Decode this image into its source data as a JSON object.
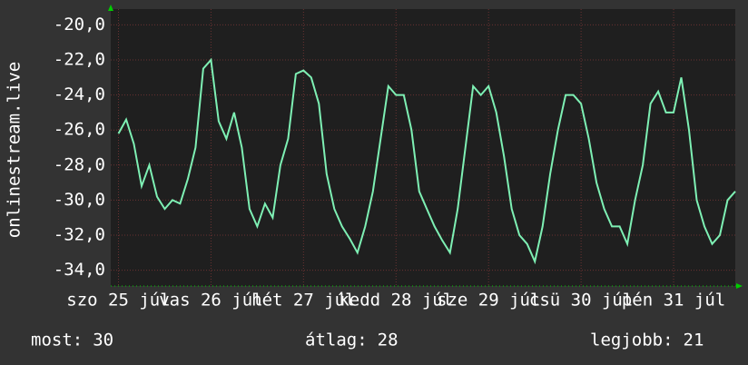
{
  "chart_data": {
    "type": "line",
    "y_label": "onlinestream.live",
    "x": [
      0,
      2,
      4,
      6,
      8,
      10,
      12,
      14,
      16,
      18,
      20,
      22,
      24,
      26,
      28,
      30,
      32,
      34,
      36,
      38,
      40,
      42,
      44,
      46,
      48,
      50,
      52,
      54,
      56,
      58,
      60,
      62,
      64,
      66,
      68,
      70,
      72,
      74,
      76,
      78,
      80,
      82,
      84,
      86,
      88,
      90,
      92,
      94,
      96,
      98,
      100,
      102,
      104,
      106,
      108,
      110,
      112,
      114,
      116,
      118,
      120,
      122,
      124,
      126,
      128,
      130,
      132,
      134,
      136,
      138,
      140,
      142,
      144,
      146,
      148,
      150,
      152,
      154,
      156,
      158,
      160
    ],
    "series": [
      {
        "color": "#7ef0b4",
        "values": [
          -26.2,
          -25.4,
          -26.8,
          -29.2,
          -28.0,
          -29.8,
          -30.5,
          -30.0,
          -30.2,
          -28.8,
          -27.0,
          -22.5,
          -22.0,
          -25.5,
          -26.5,
          -25.0,
          -27.0,
          -30.5,
          -31.5,
          -30.2,
          -31.0,
          -28.0,
          -26.5,
          -22.8,
          -22.6,
          -23.0,
          -24.5,
          -28.5,
          -30.5,
          -31.5,
          -32.2,
          -33.0,
          -31.5,
          -29.5,
          -26.5,
          -23.5,
          -24.0,
          -24.0,
          -26.0,
          -29.5,
          -30.5,
          -31.5,
          -32.3,
          -33.0,
          -30.5,
          -27.0,
          -23.5,
          -24.0,
          -23.5,
          -25.0,
          -27.5,
          -30.5,
          -32.0,
          -32.5,
          -33.5,
          -31.5,
          -28.5,
          -26.0,
          -24.0,
          -24.0,
          -24.5,
          -26.5,
          -29.0,
          -30.5,
          -31.5,
          -31.5,
          -32.5,
          -30.0,
          -28.0,
          -24.5,
          -23.8,
          -25.0,
          -25.0,
          -23.0,
          -26.0,
          -30.0,
          -31.5,
          -32.5,
          -32.0,
          -30.0,
          -29.5
        ]
      }
    ],
    "xlim": [
      -2,
      160
    ],
    "xticks": [
      {
        "value": 0,
        "label": "szo 25 júl"
      },
      {
        "value": 24,
        "label": "vas 26 júl"
      },
      {
        "value": 48,
        "label": "hét 27 júl"
      },
      {
        "value": 72,
        "label": "kedd 28 júl"
      },
      {
        "value": 96,
        "label": "sze 29 júl"
      },
      {
        "value": 120,
        "label": "csü 30 júl"
      },
      {
        "value": 144,
        "label": "pén 31 júl"
      }
    ],
    "ylim": [
      -34.9,
      -19.1
    ],
    "yticks": [
      {
        "value": -20,
        "label": "-20,0"
      },
      {
        "value": -22,
        "label": "-22,0"
      },
      {
        "value": -24,
        "label": "-24,0"
      },
      {
        "value": -26,
        "label": "-26,0"
      },
      {
        "value": -28,
        "label": "-28,0"
      },
      {
        "value": -30,
        "label": "-30,0"
      },
      {
        "value": -32,
        "label": "-32,0"
      },
      {
        "value": -34,
        "label": "-34,0"
      }
    ],
    "grid": true,
    "stats": [
      {
        "label": "most:",
        "value": 30
      },
      {
        "label": "átlag:",
        "value": 28
      },
      {
        "label": "legjobb:",
        "value": 21
      }
    ]
  }
}
